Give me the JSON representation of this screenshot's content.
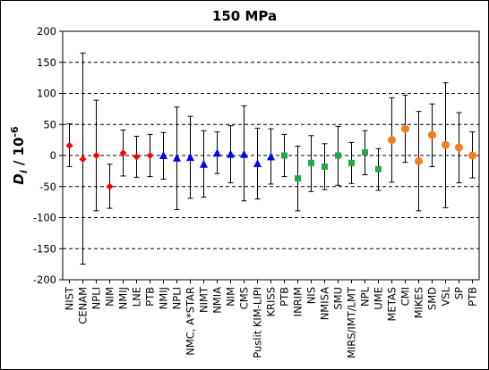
{
  "chart_data": {
    "type": "scatter",
    "title": "150 MPa",
    "ylabel": {
      "main": "D",
      "sub": "i",
      "rest": " / 10",
      "sup": "-6"
    },
    "ylim": [
      -200,
      200
    ],
    "yticks": [
      200,
      150,
      100,
      50,
      0,
      -50,
      -100,
      -150,
      -200
    ],
    "grid": "horizontal dashed",
    "colors": {
      "red": "#ff0000",
      "blue": "#0000ff",
      "green": "#1faa45",
      "orange": "#f07d1e"
    },
    "points": [
      {
        "label": "NIST",
        "y": 16,
        "lo": -18,
        "hi": 51,
        "marker": "diamond",
        "color": "red"
      },
      {
        "label": "CENAM",
        "y": -6,
        "lo": -175,
        "hi": 165,
        "marker": "diamond",
        "color": "red"
      },
      {
        "label": "NPLI",
        "y": 0,
        "lo": -89,
        "hi": 89,
        "marker": "diamond",
        "color": "red"
      },
      {
        "label": "NIM",
        "y": -50,
        "lo": -85,
        "hi": -14,
        "marker": "diamond",
        "color": "red"
      },
      {
        "label": "NMIJ",
        "y": 4,
        "lo": -33,
        "hi": 41,
        "marker": "diamond",
        "color": "red"
      },
      {
        "label": "LNE",
        "y": -2,
        "lo": -35,
        "hi": 31,
        "marker": "diamond",
        "color": "red"
      },
      {
        "label": "PTB",
        "y": 0,
        "lo": -34,
        "hi": 34,
        "marker": "diamond",
        "color": "red"
      },
      {
        "label": "NMIJ",
        "y": 0,
        "lo": -38,
        "hi": 37,
        "marker": "triangle",
        "color": "blue"
      },
      {
        "label": "NPLI",
        "y": -4,
        "lo": -87,
        "hi": 78,
        "marker": "triangle",
        "color": "blue"
      },
      {
        "label": "NMC, A*STAR",
        "y": -3,
        "lo": -69,
        "hi": 63,
        "marker": "triangle",
        "color": "blue"
      },
      {
        "label": "NIMT",
        "y": -14,
        "lo": -67,
        "hi": 40,
        "marker": "triangle",
        "color": "blue"
      },
      {
        "label": "NMIA",
        "y": 4,
        "lo": -29,
        "hi": 38,
        "marker": "triangle",
        "color": "blue"
      },
      {
        "label": "NIM",
        "y": 2,
        "lo": -44,
        "hi": 48,
        "marker": "triangle",
        "color": "blue"
      },
      {
        "label": "CMS",
        "y": 2,
        "lo": -73,
        "hi": 80,
        "marker": "triangle",
        "color": "blue"
      },
      {
        "label": "Puslit KIM-LIPI",
        "y": -13,
        "lo": -70,
        "hi": 44,
        "marker": "triangle",
        "color": "blue"
      },
      {
        "label": "KRISS",
        "y": -2,
        "lo": -46,
        "hi": 43,
        "marker": "triangle",
        "color": "blue"
      },
      {
        "label": "PTB",
        "y": 0,
        "lo": -34,
        "hi": 34,
        "marker": "square",
        "color": "green"
      },
      {
        "label": "INRIM",
        "y": -37,
        "lo": -89,
        "hi": 15,
        "marker": "square",
        "color": "green"
      },
      {
        "label": "NIS",
        "y": -12,
        "lo": -58,
        "hi": 32,
        "marker": "square",
        "color": "green"
      },
      {
        "label": "NMISA",
        "y": -18,
        "lo": -55,
        "hi": 19,
        "marker": "square",
        "color": "green"
      },
      {
        "label": "SMU",
        "y": 0,
        "lo": -48,
        "hi": 47,
        "marker": "square",
        "color": "green"
      },
      {
        "label": "MIRS/IMT/LMT",
        "y": -12,
        "lo": -45,
        "hi": 21,
        "marker": "square",
        "color": "green"
      },
      {
        "label": "NPL",
        "y": 5,
        "lo": -31,
        "hi": 40,
        "marker": "square",
        "color": "green"
      },
      {
        "label": "UME",
        "y": -22,
        "lo": -56,
        "hi": 11,
        "marker": "square",
        "color": "green"
      },
      {
        "label": "METAS",
        "y": 25,
        "lo": -43,
        "hi": 93,
        "marker": "circle",
        "color": "orange"
      },
      {
        "label": "CMI",
        "y": 43,
        "lo": -11,
        "hi": 97,
        "marker": "circle",
        "color": "orange"
      },
      {
        "label": "MIKES",
        "y": -9,
        "lo": -89,
        "hi": 71,
        "marker": "circle",
        "color": "orange"
      },
      {
        "label": "SMD",
        "y": 33,
        "lo": -18,
        "hi": 83,
        "marker": "circle",
        "color": "orange"
      },
      {
        "label": "VSL",
        "y": 17,
        "lo": -84,
        "hi": 117,
        "marker": "circle",
        "color": "orange"
      },
      {
        "label": "SP",
        "y": 13,
        "lo": -44,
        "hi": 69,
        "marker": "circle",
        "color": "orange"
      },
      {
        "label": "PTB",
        "y": 0,
        "lo": -36,
        "hi": 38,
        "marker": "circle",
        "color": "orange"
      }
    ]
  }
}
